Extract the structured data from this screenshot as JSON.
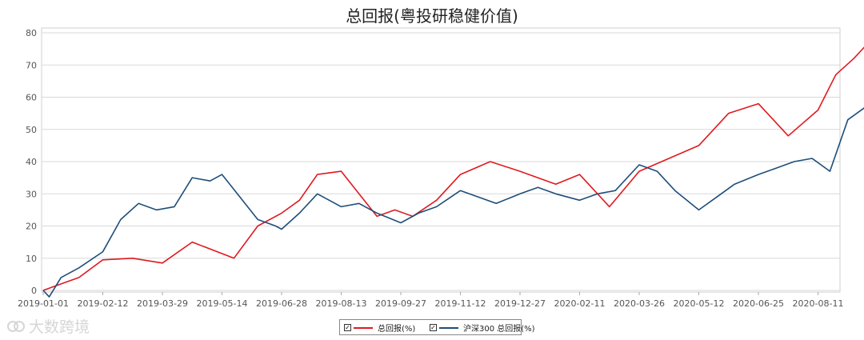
{
  "chart_data": {
    "type": "line",
    "title": "总回报(粤投研稳健价值)",
    "xlabel": "",
    "ylabel": "",
    "ylim": [
      0,
      80
    ],
    "yticks": [
      0,
      10,
      20,
      30,
      40,
      50,
      60,
      70,
      80
    ],
    "x_ticks": [
      "2019-01-01",
      "2019-02-12",
      "2019-03-29",
      "2019-05-14",
      "2019-06-28",
      "2019-08-13",
      "2019-09-27",
      "2019-11-12",
      "2019-12-27",
      "2020-02-11",
      "2020-03-26",
      "2020-05-12",
      "2020-06-25",
      "2020-08-11"
    ],
    "grid": true,
    "legend_position": "bottom",
    "series": [
      {
        "name": "总回报(%)",
        "color": "#e0191f",
        "x": [
          0,
          0.3,
          0.6,
          1,
          1.5,
          2,
          2.5,
          3.2,
          3.6,
          4,
          4.3,
          4.6,
          5,
          5.3,
          5.6,
          5.9,
          6.2,
          6.6,
          7,
          7.5,
          8,
          8.6,
          9,
          9.5,
          10,
          10.5,
          11,
          11.5,
          12,
          12.5,
          13,
          13.3,
          13.6,
          14
        ],
        "values": [
          0,
          2,
          4,
          9.5,
          10,
          8.5,
          15,
          10,
          20,
          24,
          28,
          36,
          37,
          30,
          23,
          25,
          23,
          28,
          36,
          40,
          37,
          33,
          36,
          26,
          37,
          41,
          45,
          55,
          58,
          48,
          56,
          67,
          72,
          80
        ]
      },
      {
        "name": "沪深300 总回报(%)",
        "color": "#1f4e79",
        "x": [
          0,
          0.1,
          0.3,
          0.6,
          1,
          1.3,
          1.6,
          1.9,
          2.2,
          2.5,
          2.8,
          3,
          3.3,
          3.6,
          3.9,
          4,
          4.3,
          4.6,
          5,
          5.3,
          5.6,
          6,
          6.3,
          6.6,
          7,
          7.3,
          7.6,
          8,
          8.3,
          8.6,
          9,
          9.3,
          9.6,
          10,
          10.3,
          10.6,
          11,
          11.3,
          11.6,
          12,
          12.3,
          12.6,
          12.9,
          13.2,
          13.5,
          13.8,
          14
        ],
        "values": [
          0,
          -2,
          4,
          7,
          12,
          22,
          27,
          25,
          26,
          35,
          34,
          36,
          29,
          22,
          20,
          19,
          24,
          30,
          26,
          27,
          24,
          21,
          24,
          26,
          31,
          29,
          27,
          30,
          32,
          30,
          28,
          30,
          31,
          39,
          37,
          31,
          25,
          29,
          33,
          36,
          38,
          40,
          41,
          37,
          53,
          57,
          60
        ]
      }
    ]
  },
  "legend": {
    "items": [
      {
        "check": "✓",
        "label": "总回报(%)",
        "color": "#e0191f"
      },
      {
        "check": "✓",
        "label": "沪深300 总回报(%)",
        "color": "#1f4e79"
      }
    ]
  },
  "watermark": {
    "text": "大数跨境"
  }
}
